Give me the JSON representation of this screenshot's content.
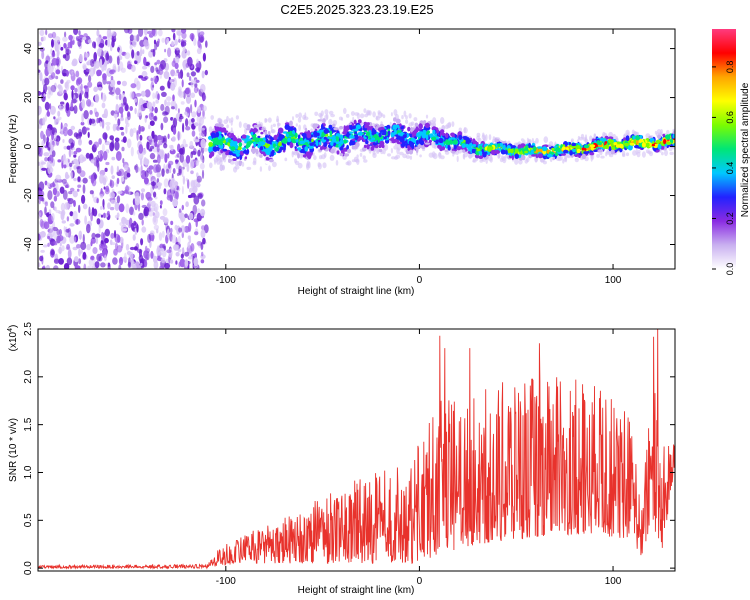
{
  "title": "C2E5.2025.323.23.19.E25",
  "colors": {
    "axis": "#000000",
    "snr_line": "#e8322c",
    "background": "#ffffff"
  },
  "chart_data": [
    {
      "type": "heatmap",
      "xlabel": "Height of straight line (km)",
      "ylabel": "Frequency (Hz)",
      "xlim": [
        -197,
        132
      ],
      "ylim": [
        -50,
        48
      ],
      "xticks": [
        -100,
        0,
        100
      ],
      "xtick_labels": [
        "-100",
        "0",
        "100"
      ],
      "yticks": [
        -40,
        -20,
        0,
        20,
        40
      ],
      "ytick_labels": [
        "-40",
        "-20",
        "0",
        "20",
        "40"
      ],
      "noise_region_x": [
        -197,
        -110
      ],
      "signal_band": [
        {
          "x": -108,
          "center": 1,
          "halfwidth": 7,
          "amp": 0.55
        },
        {
          "x": -90,
          "center": 1,
          "halfwidth": 7,
          "amp": 0.55
        },
        {
          "x": -70,
          "center": 2,
          "halfwidth": 7,
          "amp": 0.55
        },
        {
          "x": -50,
          "center": 3,
          "halfwidth": 7,
          "amp": 0.55
        },
        {
          "x": -35,
          "center": 4,
          "halfwidth": 7,
          "amp": 0.5
        },
        {
          "x": -20,
          "center": 5,
          "halfwidth": 6,
          "amp": 0.5
        },
        {
          "x": 0,
          "center": 4,
          "halfwidth": 6,
          "amp": 0.5
        },
        {
          "x": 15,
          "center": 3,
          "halfwidth": 5,
          "amp": 0.5
        },
        {
          "x": 25,
          "center": 0,
          "halfwidth": 4,
          "amp": 0.55
        },
        {
          "x": 40,
          "center": -1,
          "halfwidth": 3,
          "amp": 0.65
        },
        {
          "x": 60,
          "center": -2,
          "halfwidth": 3,
          "amp": 0.75
        },
        {
          "x": 80,
          "center": -1,
          "halfwidth": 3,
          "amp": 0.85
        },
        {
          "x": 100,
          "center": 1,
          "halfwidth": 3,
          "amp": 0.9
        },
        {
          "x": 132,
          "center": 2,
          "halfwidth": 3,
          "amp": 0.9
        }
      ],
      "colorbar": {
        "label": "Normalized spectral amplitude",
        "range": [
          0,
          0.95
        ],
        "ticks": [
          0.0,
          0.2,
          0.4,
          0.6,
          0.8
        ],
        "tick_labels": [
          "0.0",
          "0.2",
          "0.4",
          "0.6",
          "0.8"
        ],
        "colors": [
          "#ffffff",
          "#c9b0f0",
          "#8a2be2",
          "#2222ff",
          "#00c8ff",
          "#00e676",
          "#7cfc00",
          "#ffff00",
          "#ffa500",
          "#ff0000",
          "#ff3b7f"
        ]
      }
    },
    {
      "type": "line",
      "xlabel": "Height of straight line (km)",
      "ylabel": "SNR (10 * v/v)",
      "y_multiplier_label": "(x10",
      "y_multiplier_exp": "4",
      "xlim": [
        -197,
        132
      ],
      "ylim": [
        -0.03,
        2.5
      ],
      "xticks": [
        -100,
        0,
        100
      ],
      "xtick_labels": [
        "-100",
        "0",
        "100"
      ],
      "yticks": [
        0.0,
        0.5,
        1.0,
        1.5,
        2.0,
        2.5
      ],
      "ytick_labels": [
        "0.0",
        "0.5",
        "1.0",
        "1.5",
        "2.0",
        "2.5"
      ],
      "series": [
        {
          "name": "SNR",
          "envelope_x": [
            -197,
            -110,
            -105,
            -90,
            -70,
            -50,
            -30,
            -10,
            0,
            10,
            30,
            50,
            70,
            90,
            110,
            115,
            120,
            125,
            132
          ],
          "envelope_max": [
            0.03,
            0.04,
            0.2,
            0.35,
            0.55,
            0.75,
            0.95,
            1.1,
            1.3,
            1.75,
            1.85,
            2.0,
            2.0,
            1.95,
            1.6,
            0.6,
            2.25,
            1.3,
            1.4
          ],
          "envelope_min": [
            0.0,
            0.0,
            0.02,
            0.05,
            0.05,
            0.05,
            0.05,
            0.05,
            0.05,
            0.15,
            0.25,
            0.3,
            0.35,
            0.35,
            0.3,
            0.1,
            0.5,
            0.15,
            1.0
          ],
          "peaks": [
            {
              "x": 10.5,
              "y": 2.43
            },
            {
              "x": 13,
              "y": 2.3
            },
            {
              "x": 26,
              "y": 2.3
            },
            {
              "x": 62,
              "y": 2.35
            },
            {
              "x": 121,
              "y": 2.42
            },
            {
              "x": 123,
              "y": 2.5
            }
          ]
        }
      ]
    }
  ]
}
